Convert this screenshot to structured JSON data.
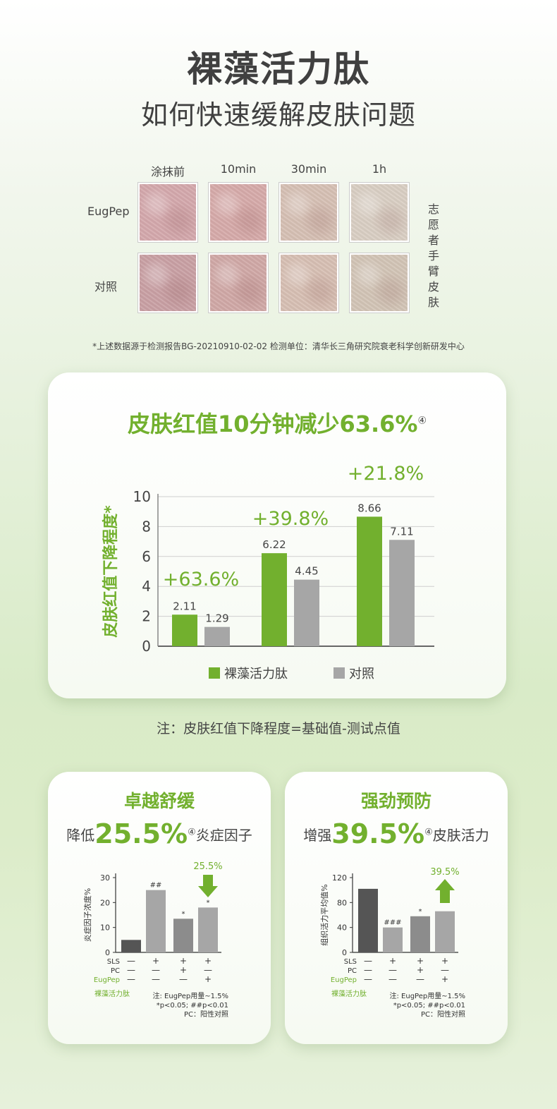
{
  "header": {
    "title": "裸藻活力肽",
    "subtitle": "如何快速缓解皮肤问题"
  },
  "photos": {
    "columns": [
      "涂抹前",
      "10min",
      "30min",
      "1h"
    ],
    "rows": [
      "EugPep",
      "对照"
    ],
    "side_label": "志愿者手臂皮肤",
    "colors": {
      "EugPep": [
        "#d4a8ac",
        "#d6aaa9",
        "#d6c0b4",
        "#d9cec3"
      ],
      "对照": [
        "#c9a0a4",
        "#d0a8a6",
        "#d7bfb3",
        "#d2c4b6"
      ]
    }
  },
  "footnote": "*上述数据源于检测报告BG-20210910-02-02  检测单位：清华长三角研究院衰老科学创新研发中心",
  "main_chart": {
    "title": "皮肤红值10分钟减少63.6%",
    "title_mark": "④",
    "note": "注：皮肤红值下降程度=基础值-测试点值"
  },
  "small_card_1": {
    "title": "卓越舒缓",
    "sub_pre": "降低",
    "sub_big": "25.5%",
    "sub_mark": "④",
    "sub_post": "炎症因子"
  },
  "small_card_2": {
    "title": "强劲预防",
    "sub_pre": "增强",
    "sub_big": "39.5%",
    "sub_mark": "④",
    "sub_post": "皮肤活力"
  },
  "chart_data": [
    {
      "type": "bar",
      "categories": [
        "",
        "",
        ""
      ],
      "series": [
        {
          "name": "裸藻活力肽",
          "values": [
            2.11,
            6.22,
            8.66
          ],
          "color": "#72b02e"
        },
        {
          "name": "对照",
          "values": [
            1.29,
            4.45,
            7.11
          ],
          "color": "#a6a6a6"
        }
      ],
      "ylabel": "皮肤红值下降程度*",
      "ylim": [
        0,
        10
      ],
      "yticks": [
        0,
        2,
        4,
        6,
        8,
        10
      ],
      "annotations": [
        "+63.6%",
        "+39.8%",
        "+21.8%"
      ],
      "grid": true,
      "legend": "bottom"
    },
    {
      "type": "bar",
      "values": [
        5,
        25,
        13.5,
        18
      ],
      "colors": [
        "#555555",
        "#a6a6a6",
        "#8c8c8c",
        "#a6a6a6"
      ],
      "marks": [
        "",
        "##",
        "*",
        "*"
      ],
      "ylabel": "炎症因子浓度%",
      "ylim": [
        0,
        30
      ],
      "yticks": [
        0,
        10,
        20,
        30
      ],
      "arrow_label": "25.5%",
      "arrow_direction": "down",
      "rows": [
        {
          "label": "SLS",
          "values": [
            "—",
            "+",
            "+",
            "+"
          ]
        },
        {
          "label": "PC",
          "values": [
            "—",
            "—",
            "+",
            "—"
          ]
        },
        {
          "label": "EugPep",
          "values": [
            "—",
            "—",
            "—",
            "+"
          ]
        }
      ],
      "row_caption": "裸藻活力肽",
      "notes": [
        "注: EugPep用量~1.5%",
        "*p<0.05; ##p<0.01",
        "PC：阳性对照"
      ]
    },
    {
      "type": "bar",
      "values": [
        102,
        40,
        58,
        66
      ],
      "colors": [
        "#555555",
        "#a6a6a6",
        "#8c8c8c",
        "#a6a6a6"
      ],
      "marks": [
        "",
        "###",
        "*",
        ""
      ],
      "ylabel": "组织活力平均值%",
      "ylim": [
        0,
        120
      ],
      "yticks": [
        0,
        40,
        80,
        120
      ],
      "arrow_label": "39.5%",
      "arrow_direction": "up",
      "rows": [
        {
          "label": "SLS",
          "values": [
            "—",
            "+",
            "+",
            "+"
          ]
        },
        {
          "label": "PC",
          "values": [
            "—",
            "—",
            "+",
            "—"
          ]
        },
        {
          "label": "EugPep",
          "values": [
            "—",
            "—",
            "—",
            "+"
          ]
        }
      ],
      "row_caption": "裸藻活力肽",
      "notes": [
        "注: EugPep用量~1.5%",
        "*p<0.05; ##p<0.01",
        "PC：阳性对照"
      ]
    }
  ]
}
